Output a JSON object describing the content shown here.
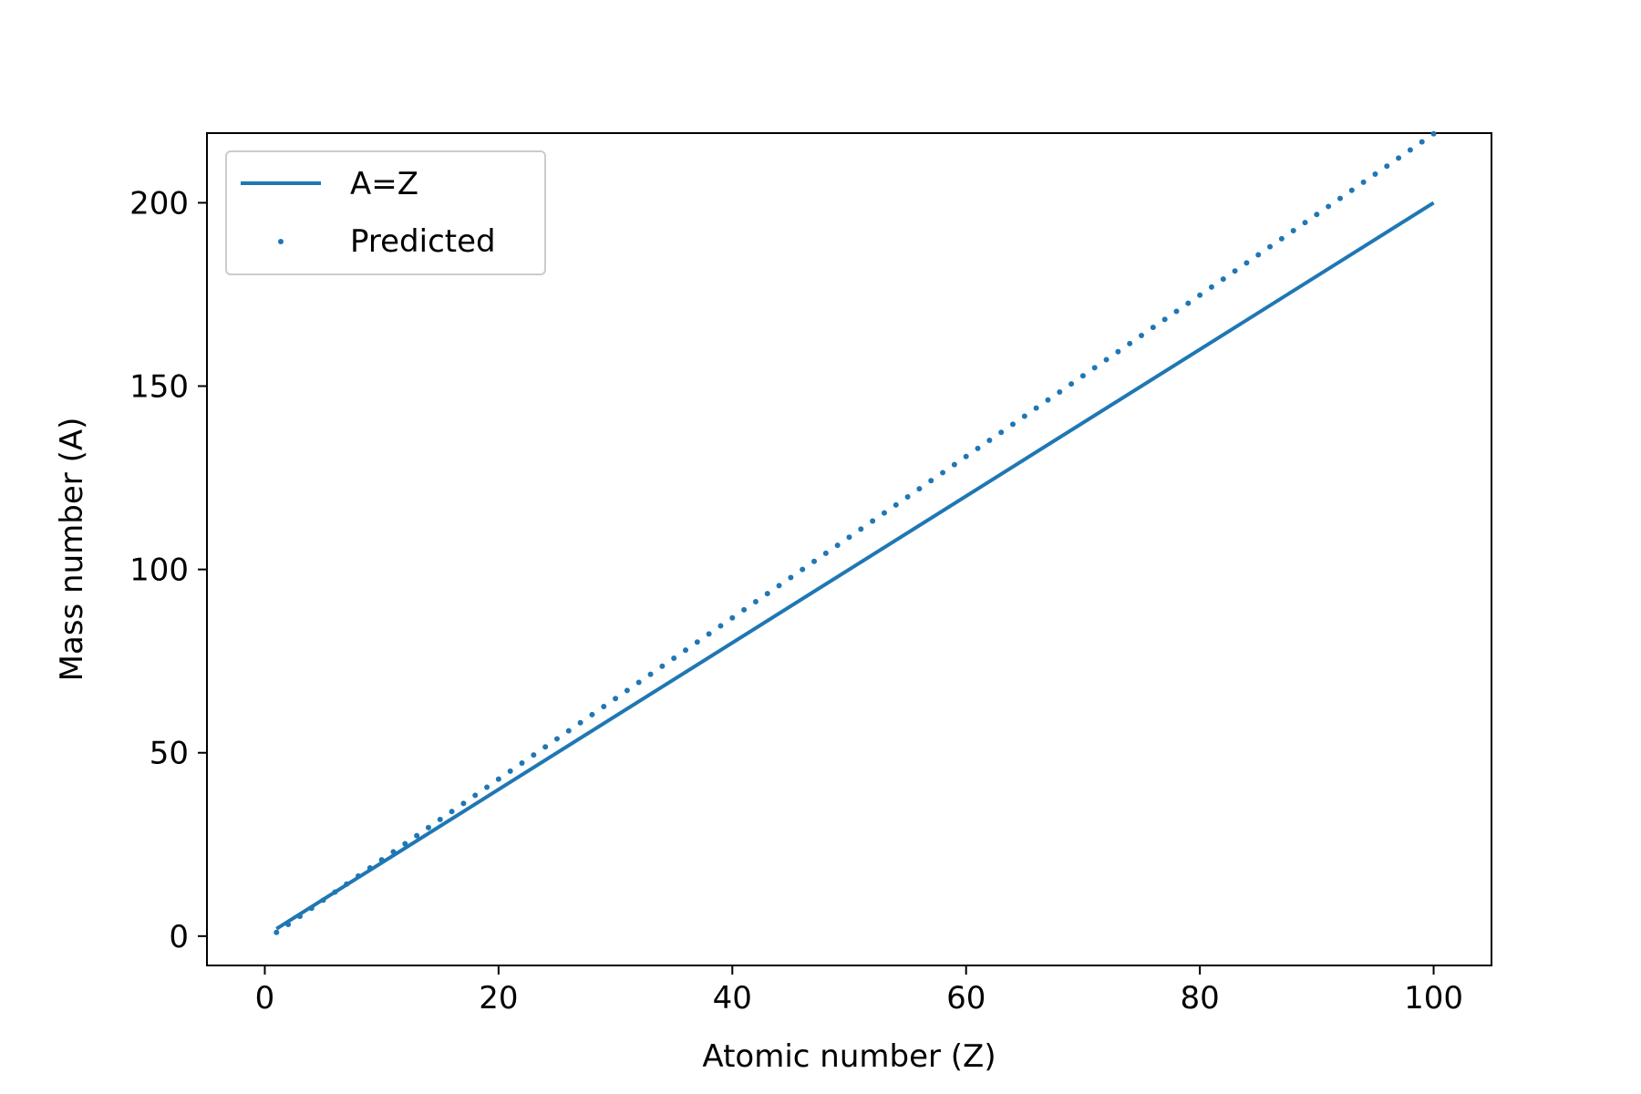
{
  "chart_data": {
    "type": "line",
    "title": "",
    "xlabel": "Atomic number (Z)",
    "ylabel": "Mass number (A)",
    "xlim": [
      -4.95,
      104.95
    ],
    "ylim": [
      -8.0,
      219.0
    ],
    "xticks": [
      0,
      20,
      40,
      60,
      80,
      100
    ],
    "yticks": [
      0,
      50,
      100,
      150,
      200
    ],
    "xtick_labels": [
      "0",
      "20",
      "40",
      "60",
      "80",
      "100"
    ],
    "ytick_labels": [
      "0",
      "50",
      "100",
      "150",
      "200"
    ],
    "grid": false,
    "legend": {
      "placement": "top-left",
      "entries": [
        "A=Z",
        "Predicted"
      ]
    },
    "color": "#1f77b4",
    "series": [
      {
        "name": "A=Z",
        "style": "line",
        "points": [
          [
            1,
            2
          ],
          [
            100,
            200
          ]
        ]
      },
      {
        "name": "Predicted",
        "style": "points",
        "x": [
          1,
          2,
          3,
          4,
          5,
          6,
          7,
          8,
          9,
          10,
          11,
          12,
          13,
          14,
          15,
          16,
          17,
          18,
          19,
          20,
          21,
          22,
          23,
          24,
          25,
          26,
          27,
          28,
          29,
          30,
          31,
          32,
          33,
          34,
          35,
          36,
          37,
          38,
          39,
          40,
          41,
          42,
          43,
          44,
          45,
          46,
          47,
          48,
          49,
          50,
          51,
          52,
          53,
          54,
          55,
          56,
          57,
          58,
          59,
          60,
          61,
          62,
          63,
          64,
          65,
          66,
          67,
          68,
          69,
          70,
          71,
          72,
          73,
          74,
          75,
          76,
          77,
          78,
          79,
          80,
          81,
          82,
          83,
          84,
          85,
          86,
          87,
          88,
          89,
          90,
          91,
          92,
          93,
          94,
          95,
          96,
          97,
          98,
          99,
          100
        ],
        "y": [
          1.0,
          3.2,
          5.4,
          7.6,
          9.8,
          12.0,
          14.2,
          16.4,
          18.6,
          20.8,
          23.0,
          25.2,
          27.4,
          29.6,
          31.8,
          34.0,
          36.2,
          38.4,
          40.6,
          42.8,
          45.0,
          47.2,
          49.4,
          51.6,
          53.8,
          56.0,
          58.2,
          60.4,
          62.6,
          64.8,
          67.0,
          69.2,
          71.4,
          73.6,
          75.8,
          78.0,
          80.2,
          82.4,
          84.6,
          86.8,
          89.0,
          91.2,
          93.4,
          95.6,
          97.8,
          100.0,
          102.2,
          104.4,
          106.6,
          108.8,
          111.0,
          113.2,
          115.4,
          117.6,
          119.8,
          122.0,
          124.2,
          126.4,
          128.6,
          130.8,
          133.0,
          135.2,
          137.4,
          139.6,
          141.8,
          144.0,
          146.2,
          148.4,
          150.6,
          152.8,
          155.0,
          157.2,
          159.4,
          161.6,
          163.8,
          166.0,
          168.2,
          170.4,
          172.6,
          174.8,
          177.0,
          179.2,
          181.4,
          183.6,
          185.8,
          188.0,
          190.2,
          192.4,
          194.6,
          196.8,
          199.0,
          201.2,
          203.4,
          205.6,
          207.8,
          210.0,
          212.2,
          214.4,
          216.6,
          218.8
        ]
      }
    ]
  }
}
